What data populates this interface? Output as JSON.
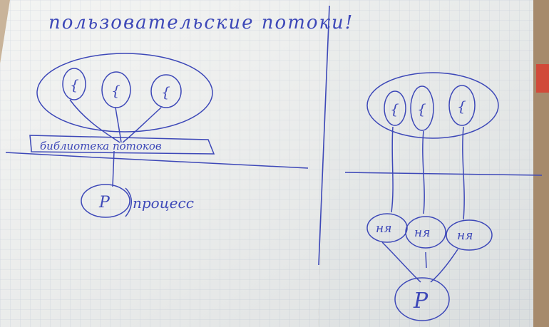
{
  "page": {
    "title": "пользовательские потоки!"
  },
  "left_diagram": {
    "threads": [
      "{",
      "{",
      "{"
    ],
    "library_label": "библиотека потоков",
    "process_symbol": "P",
    "process_label": "процесс"
  },
  "right_diagram": {
    "threads": [
      "{",
      "{",
      "{"
    ],
    "kernel_nodes": [
      "ня",
      "ня",
      "ня"
    ],
    "process_symbol": "P"
  },
  "colors": {
    "ink": "#3d48b8",
    "paper": "#f1f2f0",
    "grid": "#cfd6df",
    "desk": "#c9b49a"
  }
}
